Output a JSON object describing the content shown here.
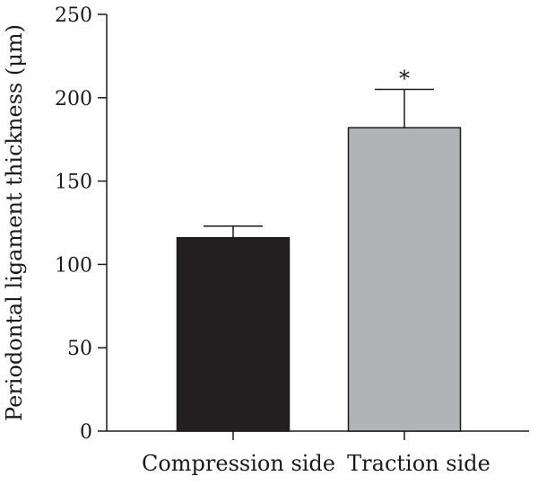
{
  "chart_data": {
    "type": "bar",
    "title": "",
    "xlabel": "",
    "ylabel": "Periodontal ligament thickness (μm)",
    "categories": [
      "Compression side",
      "Traction side"
    ],
    "values": [
      116,
      182
    ],
    "errors": [
      7,
      23
    ],
    "bar_colors": [
      "#231f20",
      "#b1b3b6"
    ],
    "annotations": [
      "",
      "*"
    ],
    "ylim": [
      0,
      250
    ],
    "yticks": [
      0,
      50,
      100,
      150,
      200,
      250
    ],
    "ytick_labels": [
      "0",
      "50",
      "100",
      "150",
      "200",
      "250"
    ],
    "grid": false,
    "legend": "none"
  }
}
